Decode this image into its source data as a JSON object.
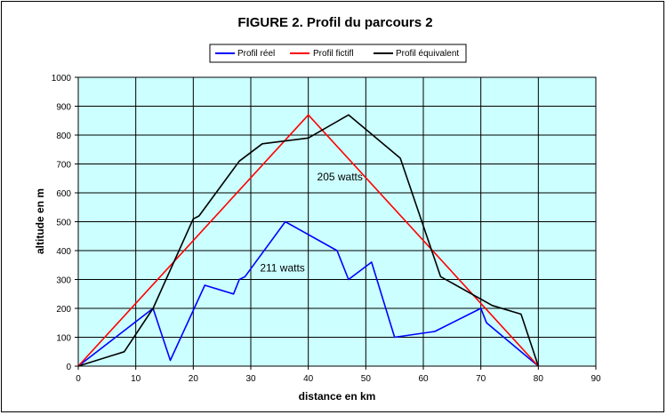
{
  "chart_data": {
    "type": "line",
    "title": "FIGURE 2. Profil du parcours 2",
    "xlabel": "distance en km",
    "ylabel": "altitude en m",
    "xlim": [
      0,
      90
    ],
    "ylim": [
      0,
      1000
    ],
    "x_ticks": [
      "0",
      "10",
      "20",
      "30",
      "40",
      "50",
      "60",
      "70",
      "80",
      "90"
    ],
    "y_ticks": [
      "0",
      "100",
      "200",
      "300",
      "400",
      "500",
      "600",
      "700",
      "800",
      "900",
      "1000"
    ],
    "grid": true,
    "plot_background": "#ccffff",
    "legend_position": "top",
    "series": [
      {
        "name": "Profil réel",
        "color": "#0000ff",
        "points": [
          [
            0,
            0
          ],
          [
            13,
            200
          ],
          [
            16,
            20
          ],
          [
            22,
            280
          ],
          [
            27,
            250
          ],
          [
            28,
            300
          ],
          [
            29,
            310
          ],
          [
            36,
            500
          ],
          [
            45,
            400
          ],
          [
            47,
            300
          ],
          [
            51,
            360
          ],
          [
            55,
            100
          ],
          [
            62,
            120
          ],
          [
            70,
            200
          ],
          [
            71,
            150
          ],
          [
            80,
            0
          ]
        ]
      },
      {
        "name": "Profil fictifl",
        "color": "#ff0000",
        "points": [
          [
            0,
            0
          ],
          [
            40,
            870
          ],
          [
            80,
            0
          ]
        ]
      },
      {
        "name": "Profil équivalent",
        "color": "#000000",
        "points": [
          [
            0,
            0
          ],
          [
            8,
            50
          ],
          [
            13,
            200
          ],
          [
            20,
            510
          ],
          [
            21,
            520
          ],
          [
            28,
            710
          ],
          [
            32,
            770
          ],
          [
            40,
            790
          ],
          [
            47,
            870
          ],
          [
            56,
            720
          ],
          [
            63,
            310
          ],
          [
            72,
            210
          ],
          [
            77,
            180
          ],
          [
            80,
            0
          ]
        ]
      }
    ],
    "annotations": [
      {
        "text": "205 watts",
        "x": 45.5,
        "y": 655
      },
      {
        "text": "211 watts",
        "x": 35.5,
        "y": 340
      }
    ]
  }
}
